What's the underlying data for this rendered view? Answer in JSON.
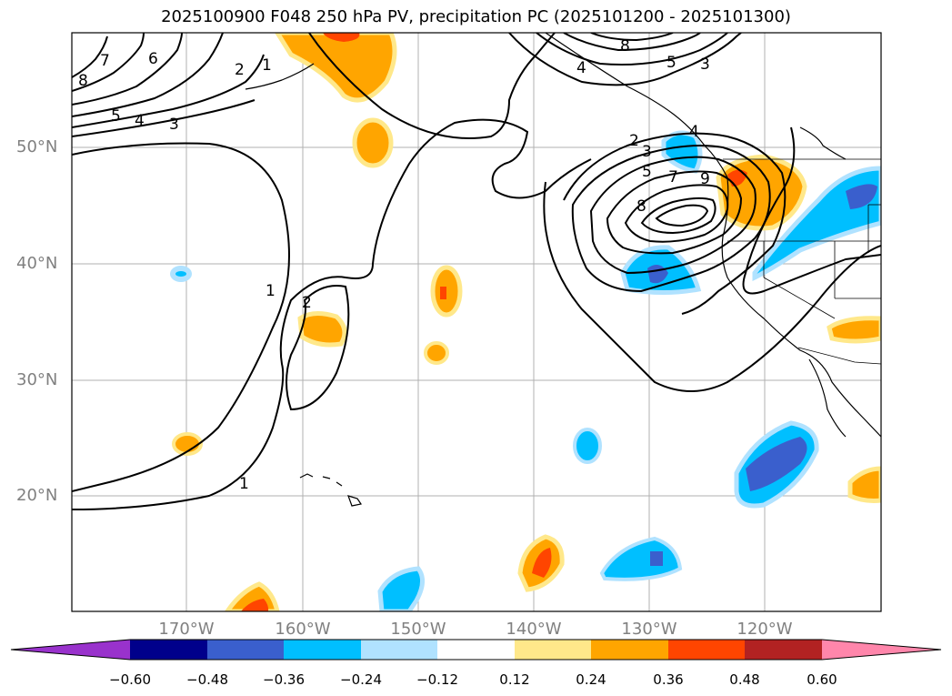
{
  "title": "2025100900 F048 250 hPa PV, precipitation PC (2025101200 - 2025101300)",
  "lat_labels": [
    "50°N",
    "40°N",
    "30°N",
    "20°N"
  ],
  "lon_labels": [
    "170°W",
    "160°W",
    "150°W",
    "140°W",
    "130°W",
    "120°W"
  ],
  "colorbar": {
    "ticks": [
      "−0.60",
      "−0.48",
      "−0.36",
      "−0.24",
      "−0.12",
      "0.12",
      "0.24",
      "0.36",
      "0.48",
      "0.60"
    ],
    "colors": [
      "#9932cc",
      "#00008b",
      "#3a5fcd",
      "#00bfff",
      "#b0e2ff",
      "#ffffff",
      "#ffe88a",
      "#ffa500",
      "#ff4500",
      "#b22222",
      "#ff86ab"
    ]
  },
  "contour_labels": [
    "7",
    "6",
    "8",
    "2",
    "1",
    "5",
    "4",
    "3",
    "8",
    "5",
    "3",
    "4",
    "2",
    "3",
    "4",
    "5",
    "7",
    "9",
    "8",
    "1",
    "2",
    "1"
  ],
  "colors": {
    "grid": "#b0b0b0",
    "contour": "#000000",
    "axis_text": "#808080"
  }
}
